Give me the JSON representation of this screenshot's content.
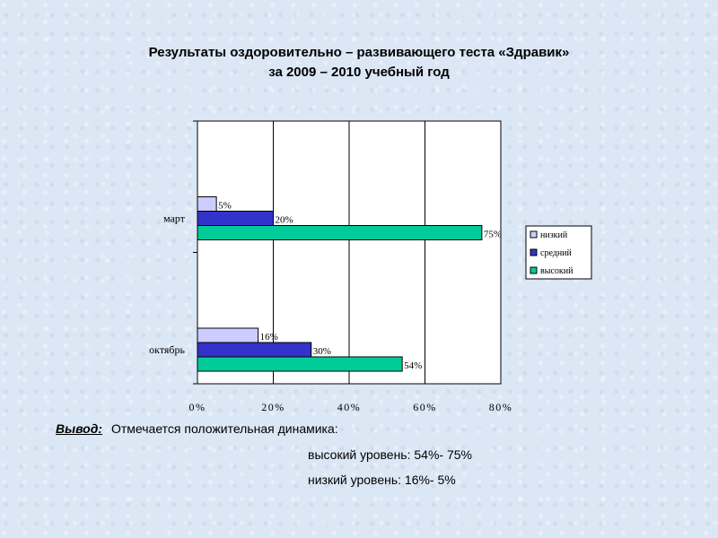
{
  "title": {
    "line1": "Результаты оздоровительно – развивающего теста «Здравик»",
    "line2": "за 2009 – 2010 учебный год"
  },
  "chart_data": {
    "type": "bar",
    "orientation": "horizontal",
    "categories": [
      "март",
      "октябрь"
    ],
    "series": [
      {
        "name": "низкий",
        "values": [
          5,
          16
        ],
        "labels": [
          "5%",
          "16%"
        ],
        "color": "#ccccff"
      },
      {
        "name": "средний",
        "values": [
          20,
          30
        ],
        "labels": [
          "20%",
          "30%"
        ],
        "color": "#3333cc"
      },
      {
        "name": "высокий",
        "values": [
          75,
          54
        ],
        "labels": [
          "75%",
          "54%"
        ],
        "color": "#00cc99"
      }
    ],
    "x_ticks": [
      "0%",
      "20%",
      "40%",
      "60%",
      "80%"
    ],
    "xlim": [
      0,
      80
    ],
    "grid": "vertical",
    "legend_position": "right"
  },
  "conclusion": {
    "label": "Вывод:",
    "text": "Отмечается положительная динамика:",
    "line1": "высокий уровень: 54%- 75%",
    "line2": "низкий уровень: 16%- 5%"
  }
}
